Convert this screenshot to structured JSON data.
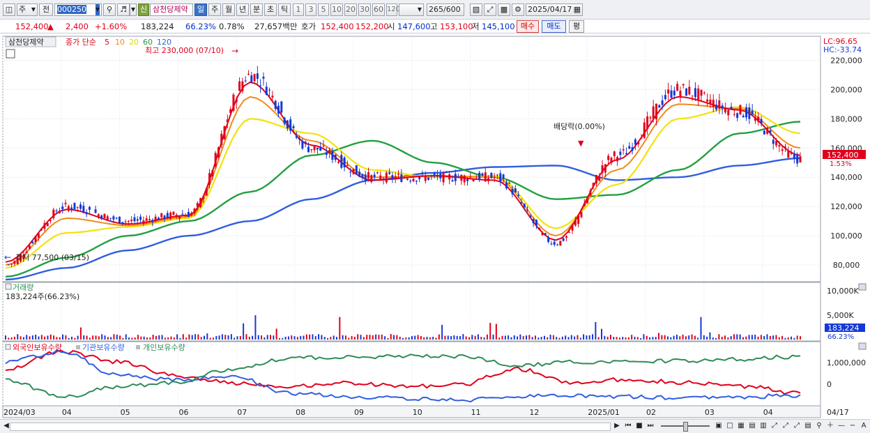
{
  "toolbar": {
    "type_select": "주",
    "prev_label": "전",
    "code": "000250",
    "badge": "신",
    "name": "삼천당제약",
    "periods": [
      "일",
      "주",
      "월",
      "년",
      "분",
      "초",
      "틱"
    ],
    "selected_period": "일",
    "minutes": [
      "1",
      "3",
      "5",
      "10",
      "20",
      "30",
      "60",
      "120"
    ],
    "count": "265",
    "count_total": "/600",
    "date": "2025/04/17"
  },
  "info": {
    "price": "152,400",
    "change": "2,400",
    "change_pct": "+1.60%",
    "volume": "183,224",
    "turnover_pct": "66.23%",
    "pct2": "0.78%",
    "amount": "27,657백만",
    "quote_label": "호가",
    "ask": "152,400",
    "bid": "152,200",
    "open_label": "시",
    "open": "147,600",
    "high_label": "고",
    "high": "153,100",
    "low_label": "저",
    "low": "145,100",
    "buy_label": "매수",
    "sell_label": "매도",
    "eval_label": "평"
  },
  "price_panel": {
    "title": "삼천당제약",
    "ma_label": "종가 단순",
    "ma_periods": [
      "5",
      "10",
      "20",
      "60",
      "120"
    ],
    "max_note": "최고 230,000 (07/10)",
    "min_note": "최저 77,500 (03/15)",
    "dividend_note": "배당락(0.00%)",
    "lc": "LC:96.65",
    "hc": "HC:-33.74",
    "last_price_tag": "152,400",
    "last_pct_tag": "1.53%",
    "axis_labels": [
      "220,000",
      "200,000",
      "180,000",
      "160,000",
      "140,000",
      "120,000",
      "100,000",
      "80,000"
    ]
  },
  "volume_panel": {
    "title": "거래량",
    "value_note": "183,224주(66.23%)",
    "axis_labels": [
      "10,000K",
      "5,000K"
    ],
    "last_tag": "183,224",
    "last_pct": "66.23%"
  },
  "holding_panel": {
    "legends": [
      "외국인보유수량",
      "기관보유수량",
      "개인보유수량"
    ],
    "axis_labels": [
      "1,000,000",
      "0"
    ]
  },
  "x_axis": {
    "labels": [
      "2024/03",
      "04",
      "05",
      "06",
      "07",
      "08",
      "09",
      "10",
      "11",
      "12",
      "2025/01",
      "02",
      "03",
      "04"
    ],
    "end_label": "04/17"
  },
  "colors": {
    "ma5": "#e0001b",
    "ma10": "#f08a1a",
    "ma20": "#f2e20a",
    "ma60": "#22a040",
    "ma120": "#2f5ee0",
    "up": "#e0001b",
    "down": "#1438d6",
    "foreign": "#e0001b",
    "institution": "#2f5ee0",
    "individual": "#2e8b57"
  },
  "chart_data": {
    "type": "line",
    "x": [
      "2024/03",
      "2024/04",
      "2024/05",
      "2024/06",
      "2024/07",
      "2024/08",
      "2024/09",
      "2024/10",
      "2024/11",
      "2024/12",
      "2025/01",
      "2025/02",
      "2025/03",
      "2025/04"
    ],
    "series": [
      {
        "name": "종가",
        "values": [
          80000,
          120000,
          110000,
          115000,
          210000,
          160000,
          140000,
          140000,
          140000,
          95000,
          155000,
          200000,
          185000,
          152400
        ]
      },
      {
        "name": "5",
        "values": [
          82000,
          118000,
          108000,
          114000,
          205000,
          162000,
          138000,
          141000,
          138000,
          97000,
          152000,
          195000,
          186000,
          155000
        ]
      },
      {
        "name": "10",
        "values": [
          80000,
          112000,
          107000,
          113000,
          195000,
          165000,
          140000,
          141000,
          140000,
          100000,
          145000,
          190000,
          187000,
          160000
        ]
      },
      {
        "name": "20",
        "values": [
          78000,
          102000,
          106000,
          112000,
          180000,
          170000,
          145000,
          140000,
          141000,
          105000,
          135000,
          180000,
          188000,
          170000
        ]
      },
      {
        "name": "60",
        "values": [
          72000,
          85000,
          100000,
          110000,
          130000,
          155000,
          165000,
          150000,
          140000,
          125000,
          128000,
          145000,
          170000,
          178000
        ]
      },
      {
        "name": "120",
        "values": [
          70000,
          78000,
          90000,
          100000,
          110000,
          125000,
          138000,
          143000,
          147000,
          148000,
          138000,
          140000,
          148000,
          153000
        ]
      }
    ],
    "ylim": [
      70000,
      235000
    ]
  }
}
